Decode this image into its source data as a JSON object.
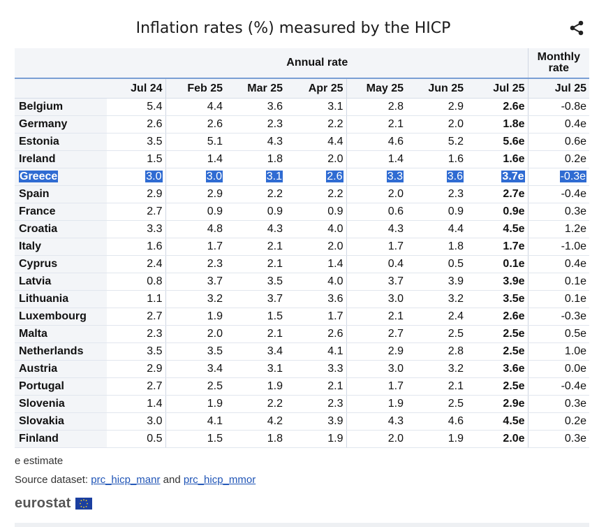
{
  "title": "Inflation rates (%) measured by the HICP",
  "share_icon": "share-icon",
  "headers": {
    "annual": "Annual rate",
    "monthly": [
      "Monthly",
      "rate"
    ],
    "months": [
      "Jul 24",
      "Feb 25",
      "Mar 25",
      "Apr 25",
      "May 25",
      "Jun 25",
      "Jul 25",
      "Jul 25"
    ]
  },
  "rows": [
    {
      "country": "Belgium",
      "values": [
        "5.4",
        "4.4",
        "3.6",
        "3.1",
        "2.8",
        "2.9",
        "2.6e",
        "-0.8e"
      ]
    },
    {
      "country": "Germany",
      "values": [
        "2.6",
        "2.6",
        "2.3",
        "2.2",
        "2.1",
        "2.0",
        "1.8e",
        "0.4e"
      ]
    },
    {
      "country": "Estonia",
      "values": [
        "3.5",
        "5.1",
        "4.3",
        "4.4",
        "4.6",
        "5.2",
        "5.6e",
        "0.6e"
      ]
    },
    {
      "country": "Ireland",
      "values": [
        "1.5",
        "1.4",
        "1.8",
        "2.0",
        "1.4",
        "1.6",
        "1.6e",
        "0.2e"
      ]
    },
    {
      "country": "Greece",
      "values": [
        "3.0",
        "3.0",
        "3.1",
        "2.6",
        "3.3",
        "3.6",
        "3.7e",
        "-0.3e"
      ],
      "highlighted": true
    },
    {
      "country": "Spain",
      "values": [
        "2.9",
        "2.9",
        "2.2",
        "2.2",
        "2.0",
        "2.3",
        "2.7e",
        "-0.4e"
      ]
    },
    {
      "country": "France",
      "values": [
        "2.7",
        "0.9",
        "0.9",
        "0.9",
        "0.6",
        "0.9",
        "0.9e",
        "0.3e"
      ]
    },
    {
      "country": "Croatia",
      "values": [
        "3.3",
        "4.8",
        "4.3",
        "4.0",
        "4.3",
        "4.4",
        "4.5e",
        "1.2e"
      ]
    },
    {
      "country": "Italy",
      "values": [
        "1.6",
        "1.7",
        "2.1",
        "2.0",
        "1.7",
        "1.8",
        "1.7e",
        "-1.0e"
      ]
    },
    {
      "country": "Cyprus",
      "values": [
        "2.4",
        "2.3",
        "2.1",
        "1.4",
        "0.4",
        "0.5",
        "0.1e",
        "0.4e"
      ]
    },
    {
      "country": "Latvia",
      "values": [
        "0.8",
        "3.7",
        "3.5",
        "4.0",
        "3.7",
        "3.9",
        "3.9e",
        "0.1e"
      ]
    },
    {
      "country": "Lithuania",
      "values": [
        "1.1",
        "3.2",
        "3.7",
        "3.6",
        "3.0",
        "3.2",
        "3.5e",
        "0.1e"
      ]
    },
    {
      "country": "Luxembourg",
      "values": [
        "2.7",
        "1.9",
        "1.5",
        "1.7",
        "2.1",
        "2.4",
        "2.6e",
        "-0.3e"
      ]
    },
    {
      "country": "Malta",
      "values": [
        "2.3",
        "2.0",
        "2.1",
        "2.6",
        "2.7",
        "2.5",
        "2.5e",
        "0.5e"
      ]
    },
    {
      "country": "Netherlands",
      "values": [
        "3.5",
        "3.5",
        "3.4",
        "4.1",
        "2.9",
        "2.8",
        "2.5e",
        "1.0e"
      ]
    },
    {
      "country": "Austria",
      "values": [
        "2.9",
        "3.4",
        "3.1",
        "3.3",
        "3.0",
        "3.2",
        "3.6e",
        "0.0e"
      ]
    },
    {
      "country": "Portugal",
      "values": [
        "2.7",
        "2.5",
        "1.9",
        "2.1",
        "1.7",
        "2.1",
        "2.5e",
        "-0.4e"
      ]
    },
    {
      "country": "Slovenia",
      "values": [
        "1.4",
        "1.9",
        "2.2",
        "2.3",
        "1.9",
        "2.5",
        "2.9e",
        "0.3e"
      ]
    },
    {
      "country": "Slovakia",
      "values": [
        "3.0",
        "4.1",
        "4.2",
        "3.9",
        "4.3",
        "4.6",
        "4.5e",
        "0.2e"
      ]
    },
    {
      "country": "Finland",
      "values": [
        "0.5",
        "1.5",
        "1.8",
        "1.9",
        "2.0",
        "1.9",
        "2.0e",
        "0.3e"
      ]
    }
  ],
  "footnote": "e estimate",
  "source": {
    "prefix": "Source dataset:",
    "link1": "prc_hicp_manr",
    "conj": "and",
    "link2": "prc_hicp_mmor"
  },
  "logo": {
    "text": "eurostat",
    "flag_icon": "eu-flag-icon"
  },
  "colors": {
    "accent_line": "#7a9fd4",
    "highlight": "#2f6bd2",
    "link": "#1f54b6",
    "header_bg": "#f3f5f8"
  }
}
